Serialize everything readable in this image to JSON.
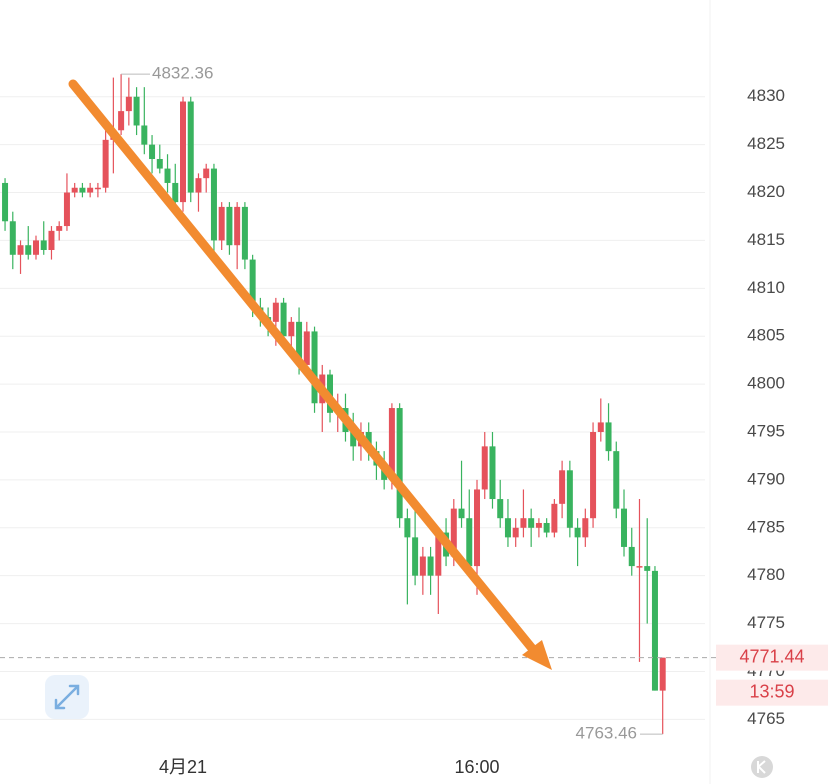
{
  "chart_data": {
    "type": "candlestick",
    "categories": [
      null,
      null,
      null,
      null,
      null,
      null,
      null,
      null,
      null,
      null,
      null,
      null,
      null,
      null,
      null,
      null,
      null,
      null,
      null,
      null,
      null,
      null,
      null,
      "4月21",
      null,
      null,
      null,
      null,
      null,
      null,
      null,
      null,
      null,
      null,
      null,
      null,
      null,
      null,
      null,
      null,
      null,
      null,
      null,
      null,
      null,
      null,
      null,
      null,
      null,
      null,
      null,
      null,
      null,
      null,
      null,
      null,
      null,
      null,
      null,
      null,
      null,
      "16:00",
      null,
      null,
      null,
      null,
      null,
      null,
      null,
      null,
      null,
      null,
      null,
      null,
      null,
      null,
      null,
      null,
      null,
      null,
      null,
      null,
      null,
      null,
      null,
      null
    ],
    "open": [
      4821,
      4817,
      4813.5,
      4814.5,
      4813.5,
      4815,
      4814,
      4816,
      4816.5,
      4820,
      4820.5,
      4820,
      4820.5,
      4820.5,
      4825.5,
      4826.5,
      4828.5,
      4830,
      4827,
      4825,
      4823.5,
      4822.5,
      4821,
      4819,
      4829.5,
      4820,
      4821.5,
      4822.5,
      4815,
      4818.5,
      4814.5,
      4818.5,
      4813,
      4808,
      4807,
      4806.5,
      4808.5,
      4805,
      4806.5,
      4802,
      4805.5,
      4798,
      4801,
      4797,
      4797.5,
      4795,
      4793.5,
      4795,
      4793,
      4791.5,
      4790,
      4797.5,
      4786,
      4784,
      4780,
      4782,
      4780,
      4784.5,
      4782,
      4787,
      4786,
      4781,
      4789,
      4793.5,
      4788,
      4786,
      4784,
      4785,
      4786,
      4785,
      4785.5,
      4784.5,
      4787.5,
      4791,
      4785,
      4784,
      4786,
      4795,
      4796,
      4793,
      4787,
      4783,
      4781,
      4781,
      4780.5,
      4768
    ],
    "high": [
      4821.5,
      4818,
      4815,
      4816.5,
      4815.5,
      4817,
      4816.5,
      4817,
      4822,
      4821,
      4821,
      4821,
      4821,
      4827,
      4832,
      4832.36,
      4832,
      4831,
      4831,
      4826,
      4825,
      4824,
      4823,
      4830,
      4830,
      4822,
      4823,
      4823,
      4819,
      4819,
      4819,
      4819,
      4813.5,
      4809,
      4808,
      4809,
      4809,
      4807,
      4808,
      4806.5,
      4806,
      4802,
      4801.5,
      4799,
      4799,
      4797,
      4796,
      4796,
      4794,
      4793,
      4798,
      4798,
      4787,
      4787,
      4783,
      4783,
      4785,
      4786,
      4788,
      4792,
      4789,
      4790,
      4795,
      4795,
      4790,
      4788,
      4786,
      4789,
      4787,
      4786,
      4786,
      4788,
      4792,
      4792,
      4786,
      4787,
      4796,
      4798.5,
      4798,
      4794,
      4789,
      4785,
      4788,
      4786,
      4781,
      4771.44
    ],
    "low": [
      4816,
      4812,
      4811.5,
      4813,
      4813,
      4813.5,
      4813,
      4815,
      4816,
      4819.5,
      4819.5,
      4819.5,
      4819.5,
      4820,
      4822,
      4826,
      4827,
      4826,
      4824,
      4822,
      4822,
      4820,
      4818,
      4818,
      4819,
      4818,
      4820,
      4813,
      4814,
      4813.5,
      4812,
      4812,
      4807,
      4806,
      4805,
      4804,
      4804,
      4803,
      4801,
      4801,
      4797,
      4795,
      4796,
      4795,
      4794,
      4792,
      4792,
      4792,
      4790,
      4789,
      4789,
      4785,
      4777,
      4779,
      4778,
      4778,
      4776,
      4781,
      4781,
      4785,
      4780,
      4778,
      4788,
      4787,
      4785,
      4783,
      4783,
      4784,
      4783,
      4784,
      4784,
      4784,
      4786,
      4784,
      4781,
      4783,
      4785,
      4794,
      4792,
      4786,
      4782,
      4780,
      4771,
      4775,
      4768,
      4763.46
    ],
    "close": [
      4817,
      4813.5,
      4814.5,
      4813.5,
      4815,
      4814,
      4816,
      4816.5,
      4820,
      4820.5,
      4820,
      4820.5,
      4820.5,
      4825.5,
      4826.5,
      4828.5,
      4830,
      4827,
      4825,
      4823.5,
      4822.5,
      4821,
      4819,
      4829.5,
      4820,
      4821.5,
      4822.5,
      4815,
      4818.5,
      4814.5,
      4818.5,
      4813,
      4808,
      4807,
      4806.5,
      4808.5,
      4805,
      4806.5,
      4802,
      4805.5,
      4798,
      4801,
      4797,
      4797.5,
      4795,
      4793.5,
      4795,
      4793,
      4791.5,
      4790,
      4797.5,
      4786,
      4784,
      4780,
      4782,
      4780,
      4784.5,
      4782,
      4787,
      4786,
      4781,
      4789,
      4793.5,
      4788,
      4786,
      4784,
      4785,
      4786,
      4785,
      4785.5,
      4784.5,
      4787.5,
      4791,
      4785,
      4784,
      4786,
      4795,
      4796,
      4793,
      4787,
      4783,
      4781,
      4781,
      4780.5,
      4768,
      4771.44
    ],
    "up_color": "#e5525b",
    "down_color": "#39b35f",
    "ylim": [
      4761.8,
      4840.1
    ],
    "yticks": [
      4765,
      4770,
      4775,
      4780,
      4785,
      4790,
      4795,
      4800,
      4805,
      4810,
      4815,
      4820,
      4825,
      4830
    ],
    "grid": true,
    "max_price": 4832.36,
    "min_price": 4763.46,
    "last_price": 4771.44,
    "countdown": "13:59"
  }
}
